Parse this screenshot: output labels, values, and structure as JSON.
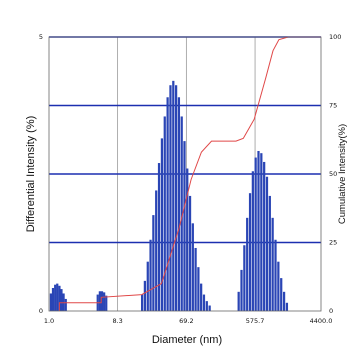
{
  "chart_data": {
    "type": "bar",
    "xlabel": "Diameter (nm)",
    "ylabel": "Differential Intensity (%)",
    "y2label": "Cumulative Intensity(%)",
    "x_scale": "log",
    "xlim": [
      1.0,
      4400.0
    ],
    "ylim": [
      0,
      5
    ],
    "y2lim": [
      0,
      100
    ],
    "x_tick_labels": [
      "1.0",
      "8.3",
      "69.2",
      "575.7",
      "4400.0"
    ],
    "y_tick_labels": [
      "0",
      "5"
    ],
    "y2_tick_labels": [
      "0",
      "25",
      "50",
      "75",
      "100"
    ],
    "grid": true,
    "colors": {
      "bars": "#2a45b5",
      "cumulative": "#e04848",
      "hgrid": "#1c2fb0",
      "vgrid": "#9a9a9a"
    },
    "series": [
      {
        "kind": "bar",
        "x": [
          1.07,
          1.14,
          1.22,
          1.3,
          1.39,
          1.48,
          1.58,
          1.69,
          4.53,
          4.84,
          5.17,
          5.52,
          5.89,
          17.8,
          19.4,
          21.2,
          23.1,
          25.2,
          27.5,
          30.0,
          32.8,
          35.8,
          39.1,
          42.7,
          46.6,
          50.8,
          55.4,
          60.4,
          65.8,
          71.7,
          78.1,
          85.1,
          92.7,
          101.0,
          110.0,
          120.0,
          131.0,
          143.0,
          350.0,
          382.0,
          417.0,
          455.0,
          497.0,
          542.0,
          591.0,
          645.0,
          704.0,
          768.0,
          838.0,
          915.0,
          998.0,
          1090.0,
          1190.0,
          1300.0,
          1420.0,
          1550.0
        ],
        "y": [
          0.32,
          0.42,
          0.48,
          0.5,
          0.46,
          0.4,
          0.32,
          0.22,
          0.3,
          0.36,
          0.36,
          0.34,
          0.28,
          0.3,
          0.55,
          0.9,
          1.3,
          1.75,
          2.2,
          2.7,
          3.15,
          3.55,
          3.9,
          4.12,
          4.2,
          4.12,
          3.9,
          3.55,
          3.1,
          2.6,
          2.1,
          1.6,
          1.15,
          0.8,
          0.5,
          0.3,
          0.18,
          0.1,
          0.35,
          0.75,
          1.2,
          1.7,
          2.15,
          2.55,
          2.8,
          2.92,
          2.88,
          2.72,
          2.45,
          2.1,
          1.7,
          1.3,
          0.9,
          0.6,
          0.35,
          0.15
        ]
      },
      {
        "kind": "line",
        "name": "cumulative",
        "x": [
          1.38,
          1.38,
          5.0,
          5.0,
          17.5,
          32.0,
          55.0,
          80.0,
          110.0,
          150.0,
          320.0,
          400.0,
          560.0,
          800.0,
          1000.0,
          1200.0,
          1600.0,
          4400.0
        ],
        "y": [
          0.0,
          3.0,
          3.0,
          5.0,
          6.0,
          10.0,
          30.0,
          48.0,
          58.0,
          62.0,
          62.0,
          63.0,
          70.0,
          85.0,
          95.0,
          99.0,
          100.0,
          100.0
        ]
      }
    ]
  }
}
